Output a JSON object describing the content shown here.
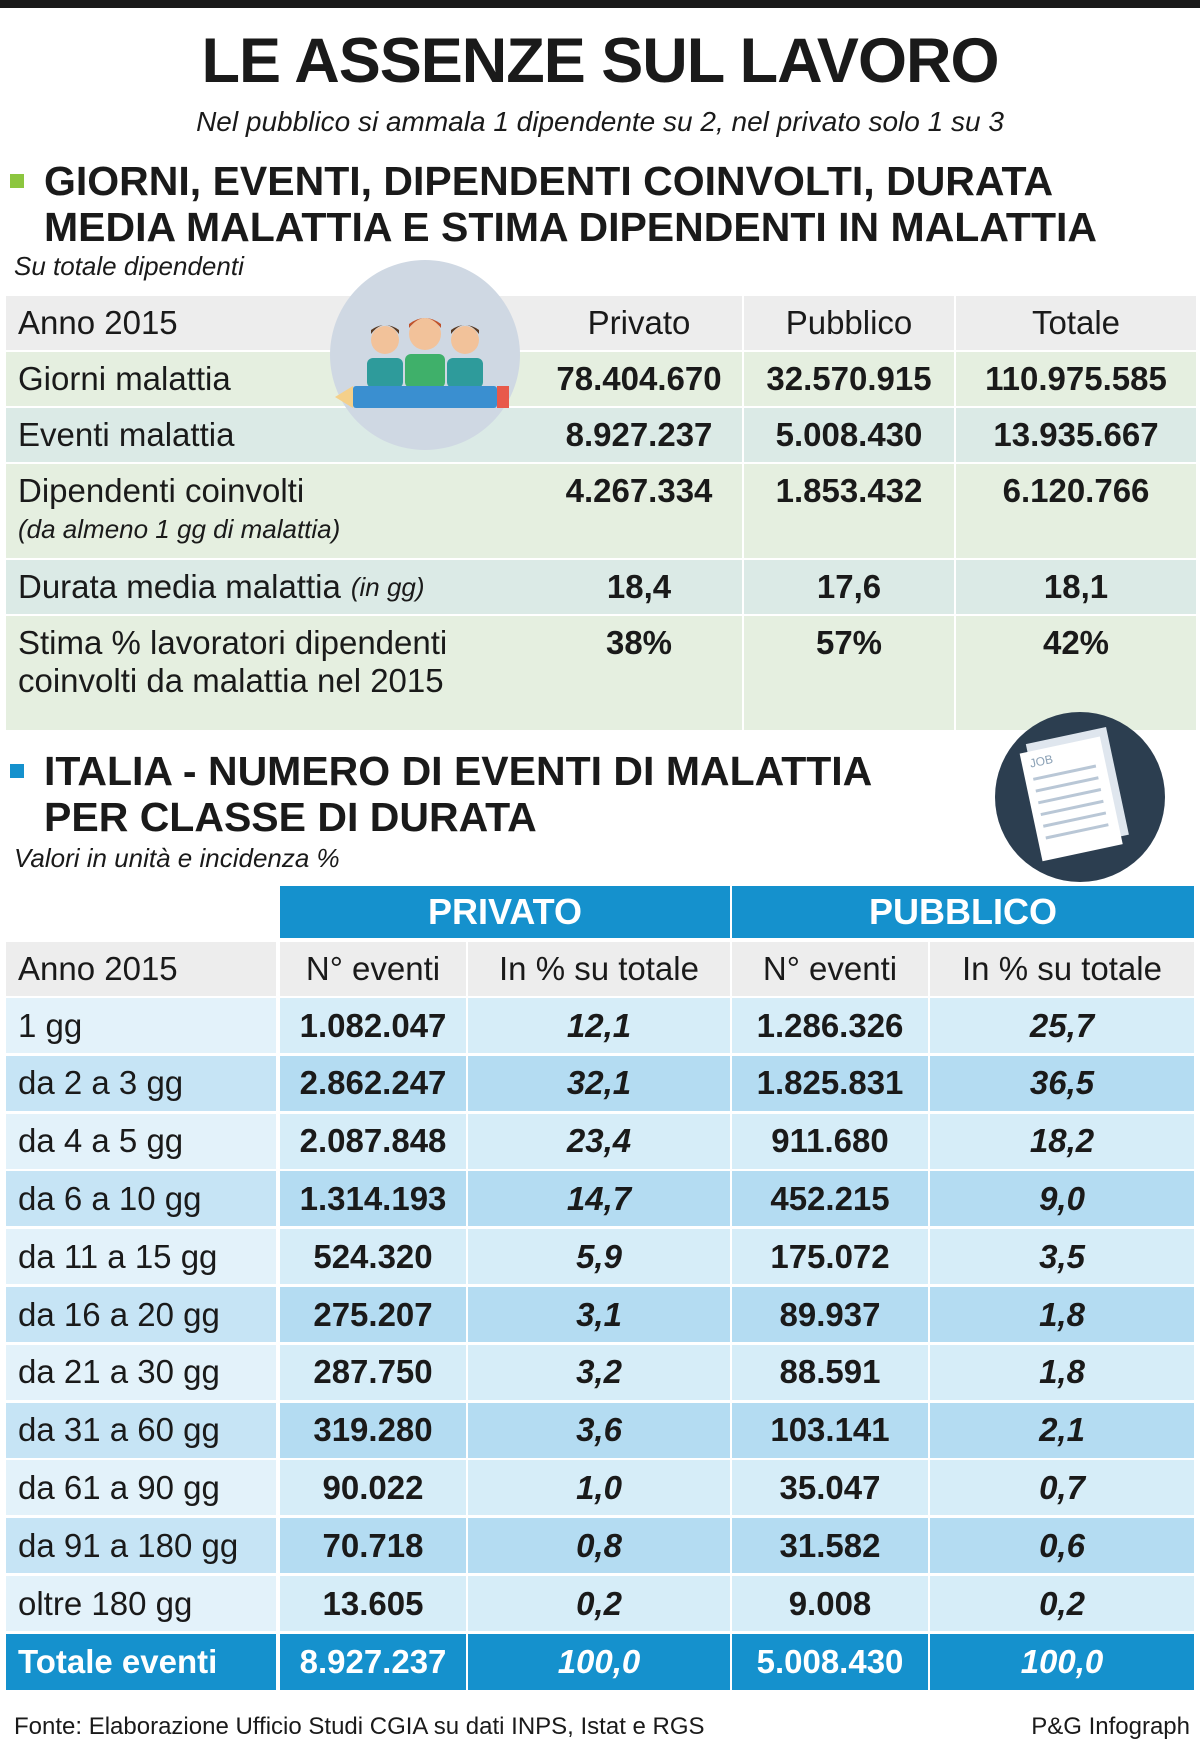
{
  "title": "LE ASSENZE SUL LAVORO",
  "subtitle": "Nel pubblico si ammala 1 dipendente su 2, nel privato solo 1 su 3",
  "colors": {
    "green_square": "#8cc63f",
    "blue_square": "#1591cd",
    "header_blue": "#1591cd"
  },
  "section1": {
    "title_line1": "GIORNI, EVENTI, DIPENDENTI COINVOLTI, DURATA",
    "title_line2": "MEDIA MALATTIA E STIMA DIPENDENTI IN MALATTIA",
    "note": "Su totale dipendenti",
    "icon": "people-icon",
    "headers": [
      "Anno 2015",
      "Privato",
      "Pubblico",
      "Totale"
    ],
    "rows": [
      {
        "label": "Giorni malattia",
        "sub": "",
        "values": [
          "78.404.670",
          "32.570.915",
          "110.975.585"
        ]
      },
      {
        "label": "Eventi malattia",
        "sub": "",
        "values": [
          "8.927.237",
          "5.008.430",
          "13.935.667"
        ]
      },
      {
        "label": "Dipendenti coinvolti",
        "sub": "(da almeno 1 gg di malattia)",
        "values": [
          "4.267.334",
          "1.853.432",
          "6.120.766"
        ]
      },
      {
        "label": "Durata media malattia",
        "sub": "(in gg)",
        "values": [
          "18,4",
          "17,6",
          "18,1"
        ]
      },
      {
        "label": "Stima % lavoratori dipendenti",
        "sub": "coinvolti da malattia nel 2015",
        "values": [
          "38%",
          "57%",
          "42%"
        ]
      }
    ]
  },
  "section2": {
    "title_line1": "ITALIA - NUMERO DI EVENTI DI MALATTIA",
    "title_line2": "PER CLASSE DI DURATA",
    "note": "Valori in unità e incidenza %",
    "icon": "document-icon",
    "icon_text": "JOB",
    "group_headers": [
      "PRIVATO",
      "PUBBLICO"
    ],
    "headers": [
      "Anno 2015",
      "N° eventi",
      "In % su totale",
      "N° eventi",
      "In % su totale"
    ],
    "rows": [
      {
        "label": "1 gg",
        "values": [
          "1.082.047",
          "12,1",
          "1.286.326",
          "25,7"
        ]
      },
      {
        "label": "da 2 a 3 gg",
        "values": [
          "2.862.247",
          "32,1",
          "1.825.831",
          "36,5"
        ]
      },
      {
        "label": "da 4 a 5 gg",
        "values": [
          "2.087.848",
          "23,4",
          "911.680",
          "18,2"
        ]
      },
      {
        "label": "da 6 a 10 gg",
        "values": [
          "1.314.193",
          "14,7",
          "452.215",
          "9,0"
        ]
      },
      {
        "label": "da 11 a 15 gg",
        "values": [
          "524.320",
          "5,9",
          "175.072",
          "3,5"
        ]
      },
      {
        "label": "da 16 a 20 gg",
        "values": [
          "275.207",
          "3,1",
          "89.937",
          "1,8"
        ]
      },
      {
        "label": "da 21 a 30 gg",
        "values": [
          "287.750",
          "3,2",
          "88.591",
          "1,8"
        ]
      },
      {
        "label": "da 31 a 60 gg",
        "values": [
          "319.280",
          "3,6",
          "103.141",
          "2,1"
        ]
      },
      {
        "label": "da 61 a 90 gg",
        "values": [
          "90.022",
          "1,0",
          "35.047",
          "0,7"
        ]
      },
      {
        "label": "da 91 a 180 gg",
        "values": [
          "70.718",
          "0,8",
          "31.582",
          "0,6"
        ]
      },
      {
        "label": "oltre 180 gg",
        "values": [
          "13.605",
          "0,2",
          "9.008",
          "0,2"
        ]
      }
    ],
    "total": {
      "label": "Totale eventi",
      "values": [
        "8.927.237",
        "100,0",
        "5.008.430",
        "100,0"
      ]
    }
  },
  "footer": {
    "source": "Fonte: Elaborazione Ufficio Studi CGIA su dati INPS, Istat e RGS",
    "credit": "P&G Infograph"
  }
}
